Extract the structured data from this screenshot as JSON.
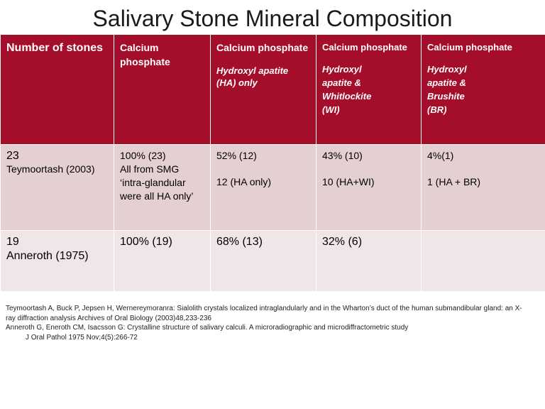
{
  "title": "Salivary Stone Mineral Composition",
  "table": {
    "header": {
      "c0": "Number of stones",
      "c1": "Calcium phosphate",
      "c2": {
        "main": "Calcium phosphate",
        "sub": "Hydroxyl apatite (HA) only"
      },
      "c3": {
        "main": "Calcium phosphate",
        "sub1": "Hydroxyl",
        "sub2": "apatite  &",
        "sub3": "Whitlockite",
        "sub4": "(WI)"
      },
      "c4": {
        "main": "Calcium phosphate",
        "sub1": "Hydroxyl",
        "sub2": "apatite &",
        "sub3": "Brushite",
        "sub4": "(BR)"
      }
    },
    "rows": [
      {
        "count": "23",
        "author": "Teymoortash (2003)",
        "c1_line1": "100% (23)",
        "c1_line2": "All from  SMG",
        "c1_line3": "‘intra-glandular",
        "c1_line4": "were all HA only’",
        "c2_line1": "52% (12)",
        "c2_line2": "12 (HA only)",
        "c3_line1": "43% (10)",
        "c3_line2": "10 (HA+WI)",
        "c4_line1": "4%(1)",
        "c4_line2": "1 (HA + BR)"
      },
      {
        "count": "19",
        "author": "Anneroth (1975)",
        "c1": "100% (19)",
        "c2": "68% (13)",
        "c3": "32% (6)",
        "c4": ""
      }
    ]
  },
  "references": {
    "ref1_line1": "Teymoortash A, Buck P, Jepsen H, Wernereymoranra: Sialolith crystals localized intraglandularly and in the Wharton’s duct of the human submandibular gland: an X-",
    "ref1_line2": "ray diffraction analysis     Archives of Oral Biology (2003)48,233-236",
    "ref2_line1": "Anneroth G, Eneroth CM, Isacsson G: Crystalline structure of salivary calculi. A microradiographic and microdiffractometric study",
    "ref2_line2": "J Oral Pathol 1975 Nov;4(5):266-72"
  },
  "colors": {
    "header_bg": "#a50e2a",
    "row1_bg": "#e4cfd2",
    "row2_bg": "#f1e6e7"
  }
}
